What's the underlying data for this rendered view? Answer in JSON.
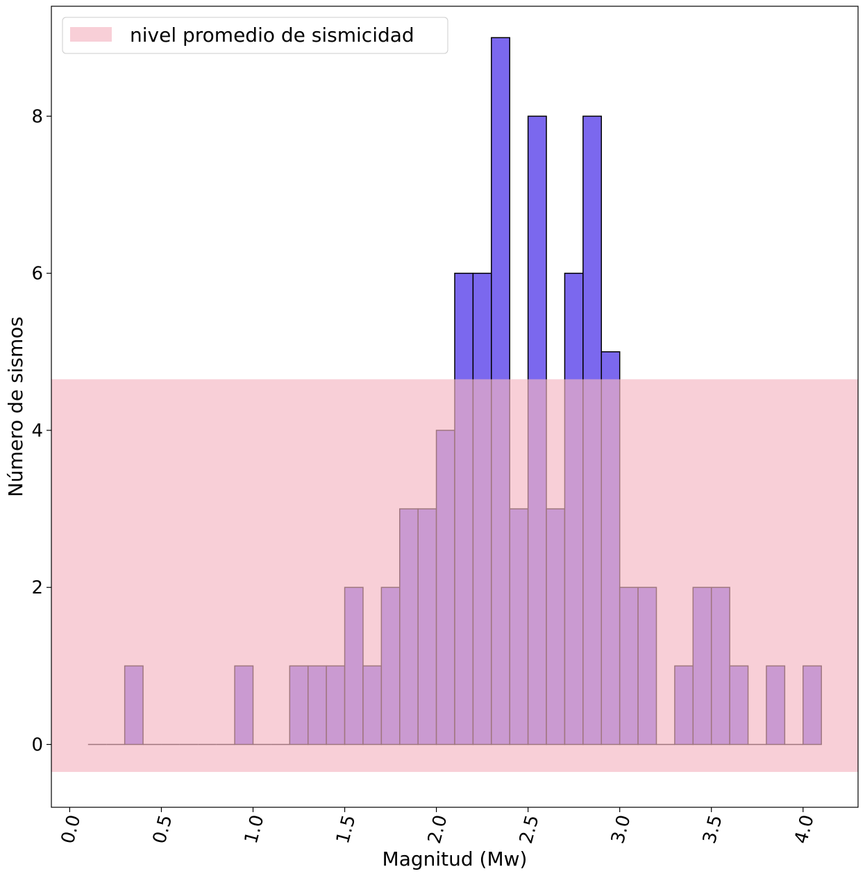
{
  "chart_data": {
    "type": "bar",
    "subtype": "histogram",
    "xlabel": "Magnitud (Mw)",
    "ylabel": "Número de sismos",
    "xlim": [
      -0.1,
      4.3
    ],
    "ylim": [
      -0.8,
      9.4
    ],
    "x_ticks": [
      0.0,
      0.5,
      1.0,
      1.5,
      2.0,
      2.5,
      3.0,
      3.5,
      4.0
    ],
    "x_tick_labels": [
      "0.0",
      "0.5",
      "1.0",
      "1.5",
      "2.0",
      "2.5",
      "3.0",
      "3.5",
      "4.0"
    ],
    "x_tick_rotation": 75,
    "y_ticks": [
      0,
      2,
      4,
      6,
      8
    ],
    "y_tick_labels": [
      "0",
      "2",
      "4",
      "6",
      "8"
    ],
    "grid": false,
    "bin_width": 0.1,
    "bin_starts": [
      0.1,
      0.2,
      0.3,
      0.4,
      0.5,
      0.6,
      0.7,
      0.8,
      0.9,
      1.0,
      1.1,
      1.2,
      1.3,
      1.4,
      1.5,
      1.6,
      1.7,
      1.8,
      1.9,
      2.0,
      2.1,
      2.2,
      2.3,
      2.4,
      2.5,
      2.6,
      2.7,
      2.8,
      2.9,
      3.0,
      3.1,
      3.2,
      3.3,
      3.4,
      3.5,
      3.6,
      3.7,
      3.8,
      3.9,
      4.0
    ],
    "values": [
      0,
      0,
      1,
      0,
      0,
      0,
      0,
      0,
      1,
      0,
      0,
      1,
      1,
      1,
      2,
      1,
      2,
      3,
      3,
      4,
      6,
      6,
      9,
      3,
      8,
      3,
      6,
      8,
      5,
      2,
      2,
      0,
      1,
      2,
      2,
      1,
      0,
      1,
      0,
      1
    ],
    "bar_color": "#7b68ee",
    "edge_color": "#000000",
    "band": {
      "name": "nivel promedio de sismicidad",
      "y_from": -0.35,
      "y_to": 4.65,
      "color": "#f4b6c2"
    },
    "legend": {
      "position": "top-left",
      "entries": [
        "nivel promedio de sismicidad"
      ]
    }
  }
}
